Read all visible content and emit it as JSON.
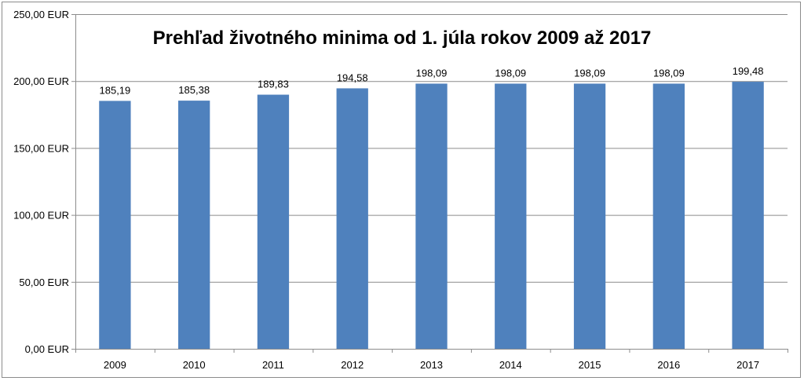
{
  "chart_data": {
    "type": "bar",
    "title": "Prehľad životného minima od 1. júla rokov 2009 až 2017",
    "categories": [
      "2009",
      "2010",
      "2011",
      "2012",
      "2013",
      "2014",
      "2015",
      "2016",
      "2017"
    ],
    "values": [
      185.19,
      185.38,
      189.83,
      194.58,
      198.09,
      198.09,
      198.09,
      198.09,
      199.48
    ],
    "data_labels": [
      "185,19",
      "185,38",
      "189,83",
      "194,58",
      "198,09",
      "198,09",
      "198,09",
      "198,09",
      "199,48"
    ],
    "y_ticks": [
      0,
      50,
      100,
      150,
      200,
      250
    ],
    "y_tick_labels": [
      "0,00 EUR",
      "50,00 EUR",
      "100,00 EUR",
      "150,00 EUR",
      "200,00 EUR",
      "250,00 EUR"
    ],
    "ylim": [
      0,
      250
    ],
    "grid": true,
    "legend": "none",
    "bar_color": "#4f81bd",
    "grid_color": "#8c8c8c"
  }
}
